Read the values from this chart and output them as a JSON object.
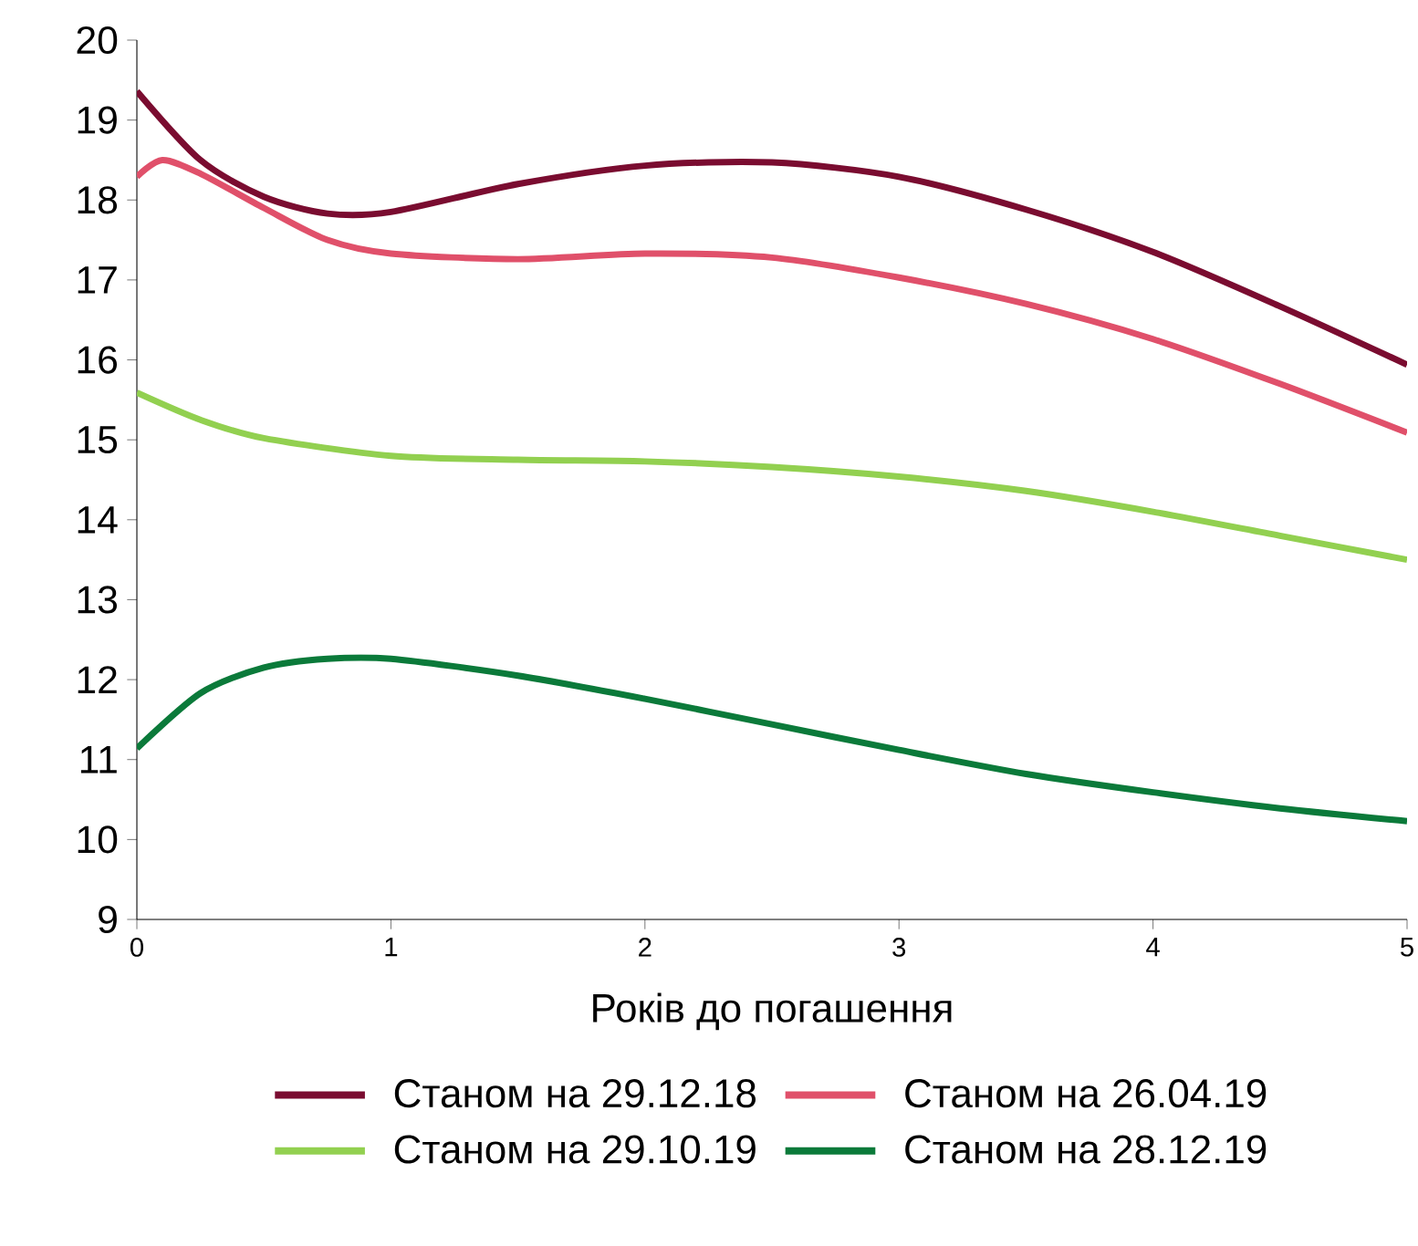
{
  "chart_data": {
    "type": "line",
    "xlabel": "Років до погашення",
    "xlim": [
      0,
      5
    ],
    "xticks": [
      0,
      1,
      2,
      3,
      4,
      5
    ],
    "ylim": [
      9,
      20
    ],
    "yticks": [
      9,
      10,
      11,
      12,
      13,
      14,
      15,
      16,
      17,
      18,
      19,
      20
    ],
    "legend": "bottom",
    "marker": "none",
    "line_style": "solid",
    "series": [
      {
        "name": "Станом на 29.12.18",
        "color": "#7a0c30",
        "x": [
          0,
          0.25,
          0.5,
          0.75,
          1,
          1.5,
          2,
          2.5,
          3,
          3.5,
          4,
          4.5,
          5
        ],
        "values": [
          19.36,
          18.5,
          18.04,
          17.83,
          17.85,
          18.2,
          18.43,
          18.47,
          18.29,
          17.88,
          17.35,
          16.67,
          15.94
        ]
      },
      {
        "name": "Станом на 26.04.19",
        "color": "#e0506a",
        "x": [
          0,
          0.1,
          0.25,
          0.5,
          0.75,
          1,
          1.5,
          2,
          2.5,
          3,
          3.5,
          4,
          4.5,
          5
        ],
        "values": [
          18.29,
          18.5,
          18.33,
          17.9,
          17.5,
          17.33,
          17.26,
          17.33,
          17.28,
          17.03,
          16.7,
          16.26,
          15.7,
          15.09
        ]
      },
      {
        "name": "Станом на 29.10.19",
        "color": "#92d050",
        "x": [
          0,
          0.25,
          0.5,
          1,
          1.5,
          2,
          2.5,
          3,
          3.5,
          4,
          4.5,
          5
        ],
        "values": [
          15.59,
          15.25,
          15.02,
          14.8,
          14.75,
          14.73,
          14.66,
          14.54,
          14.36,
          14.1,
          13.8,
          13.5
        ]
      },
      {
        "name": "Станом на 28.12.19",
        "color": "#0b7a3a",
        "x": [
          0,
          0.25,
          0.5,
          0.75,
          1,
          1.5,
          2,
          2.5,
          3,
          3.5,
          4,
          4.5,
          5
        ],
        "values": [
          11.14,
          11.83,
          12.15,
          12.26,
          12.26,
          12.05,
          11.76,
          11.44,
          11.12,
          10.82,
          10.59,
          10.39,
          10.23
        ]
      }
    ]
  }
}
